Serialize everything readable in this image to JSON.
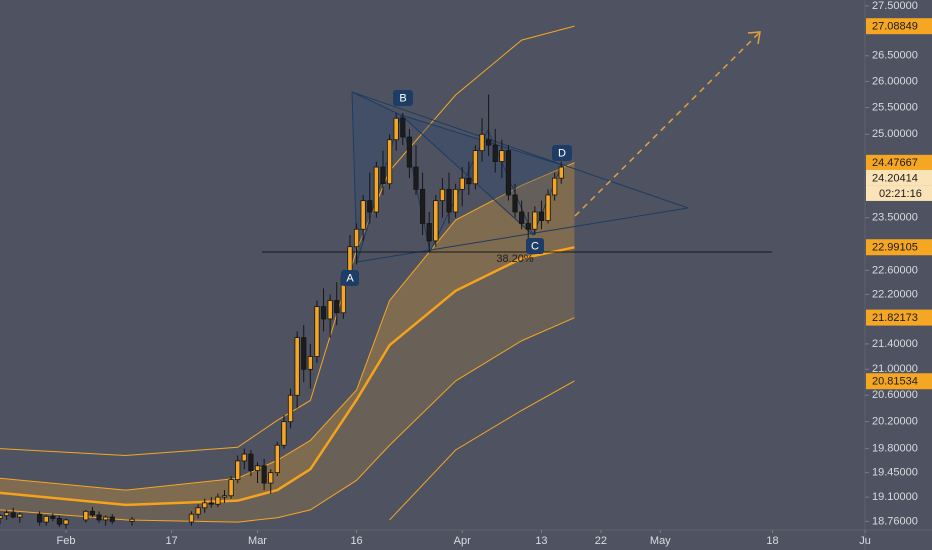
{
  "chart_data": {
    "type": "candlestick",
    "log_scale": true,
    "xlim": [
      21,
      152
    ],
    "ylim": [
      18.64,
      27.62
    ],
    "xticks": [
      {
        "value": 31,
        "label": "Feb"
      },
      {
        "value": 47,
        "label": "17"
      },
      {
        "value": 60,
        "label": "Mar"
      },
      {
        "value": 75,
        "label": "16"
      },
      {
        "value": 91,
        "label": "Apr"
      },
      {
        "value": 103,
        "label": "13"
      },
      {
        "value": 112,
        "label": "22"
      },
      {
        "value": 121,
        "label": "May"
      },
      {
        "value": 138,
        "label": "18"
      },
      {
        "value": 152,
        "label": "Ju"
      }
    ],
    "yticks": [
      {
        "value": 27.5,
        "label": "27.50000"
      },
      {
        "value": 26.5,
        "label": "26.50000"
      },
      {
        "value": 26.0,
        "label": "26.00000"
      },
      {
        "value": 25.5,
        "label": "25.50000"
      },
      {
        "value": 25.0,
        "label": "25.00000"
      },
      {
        "value": 23.5,
        "label": "23.50000"
      },
      {
        "value": 22.6,
        "label": "22.60000"
      },
      {
        "value": 22.2,
        "label": "22.20000"
      },
      {
        "value": 21.4,
        "label": "21.40000"
      },
      {
        "value": 21.0,
        "label": "21.00000"
      },
      {
        "value": 20.6,
        "label": "20.60000"
      },
      {
        "value": 20.2,
        "label": "20.20000"
      },
      {
        "value": 19.8,
        "label": "19.80000"
      },
      {
        "value": 19.45,
        "label": "19.45000"
      },
      {
        "value": 19.1,
        "label": "19.10000"
      },
      {
        "value": 18.76,
        "label": "18.76000"
      }
    ],
    "up_color": "#f5a623",
    "down_color": "#1c1c1e",
    "x": [
      21,
      22,
      23,
      24,
      27,
      28,
      29,
      30,
      31,
      34,
      35,
      36,
      37,
      38,
      41,
      50,
      51,
      52,
      53,
      54,
      55,
      56,
      57,
      58,
      59,
      60,
      61,
      62,
      63,
      64,
      65,
      66,
      67,
      68,
      69,
      70,
      71,
      72,
      73,
      74,
      75,
      76,
      77,
      78,
      79,
      80,
      81,
      82,
      83,
      84,
      85,
      86,
      87,
      88,
      89,
      90,
      91,
      92,
      93,
      94,
      95,
      96,
      97,
      98,
      99,
      100,
      101,
      102,
      103,
      104,
      105,
      106
    ],
    "open": [
      18.8,
      18.84,
      18.88,
      18.82,
      18.86,
      18.75,
      18.83,
      18.8,
      18.72,
      18.78,
      18.9,
      18.85,
      18.78,
      18.82,
      18.76,
      18.75,
      18.86,
      18.95,
      19.02,
      19.0,
      19.1,
      19.12,
      19.35,
      19.62,
      19.72,
      19.48,
      19.55,
      19.3,
      19.45,
      19.85,
      20.2,
      20.6,
      21.5,
      21.0,
      21.2,
      22.0,
      21.8,
      22.1,
      21.9,
      22.5,
      23.0,
      23.3,
      23.8,
      23.6,
      24.4,
      24.1,
      24.9,
      25.3,
      24.95,
      24.4,
      24.0,
      23.4,
      23.1,
      23.8,
      24.0,
      23.6,
      24.0,
      24.2,
      24.1,
      24.7,
      24.9,
      24.8,
      24.5,
      24.7,
      23.9,
      23.6,
      23.4,
      23.3,
      23.6,
      23.45,
      23.9,
      24.2
    ],
    "high": [
      18.86,
      18.92,
      18.95,
      18.88,
      18.9,
      18.85,
      18.87,
      18.84,
      18.8,
      18.92,
      18.96,
      18.9,
      18.84,
      18.86,
      18.82,
      18.9,
      19.0,
      19.08,
      19.1,
      19.15,
      19.2,
      19.4,
      19.7,
      19.8,
      19.78,
      19.6,
      19.65,
      19.5,
      19.9,
      20.3,
      20.7,
      21.6,
      21.7,
      21.4,
      22.1,
      22.3,
      22.2,
      22.4,
      22.6,
      23.2,
      23.4,
      23.9,
      24.3,
      24.5,
      24.7,
      25.0,
      25.4,
      25.4,
      25.1,
      24.8,
      24.3,
      23.6,
      23.9,
      24.2,
      24.3,
      24.1,
      24.4,
      24.5,
      24.8,
      25.3,
      25.75,
      25.1,
      24.9,
      24.8,
      24.1,
      23.8,
      23.6,
      23.7,
      23.8,
      24.0,
      24.3,
      24.5
    ],
    "low": [
      18.72,
      18.78,
      18.8,
      18.74,
      18.7,
      18.7,
      18.76,
      18.68,
      18.66,
      18.74,
      18.82,
      18.74,
      18.7,
      18.72,
      18.7,
      18.7,
      18.8,
      18.88,
      18.95,
      18.96,
      19.02,
      19.08,
      19.3,
      19.5,
      19.4,
      19.3,
      19.2,
      19.15,
      19.4,
      19.8,
      20.1,
      20.4,
      20.8,
      20.7,
      21.1,
      21.6,
      21.5,
      21.7,
      21.8,
      22.4,
      22.7,
      23.1,
      23.4,
      23.5,
      23.9,
      24.0,
      24.7,
      24.8,
      24.2,
      23.9,
      23.2,
      22.9,
      23.0,
      23.5,
      23.4,
      23.5,
      23.7,
      23.9,
      24.0,
      24.5,
      24.6,
      24.3,
      24.2,
      23.8,
      23.5,
      23.3,
      23.1,
      23.2,
      23.3,
      23.4,
      23.8,
      24.1
    ],
    "close": [
      18.84,
      18.88,
      18.82,
      18.86,
      18.75,
      18.83,
      18.8,
      18.72,
      18.78,
      18.9,
      18.85,
      18.78,
      18.82,
      18.76,
      18.79,
      18.86,
      18.95,
      19.02,
      19.0,
      19.1,
      19.12,
      19.35,
      19.62,
      19.72,
      19.48,
      19.55,
      19.3,
      19.45,
      19.85,
      20.2,
      20.6,
      21.5,
      21.0,
      21.2,
      22.0,
      21.8,
      22.1,
      21.9,
      22.5,
      23.0,
      23.3,
      23.8,
      23.6,
      24.4,
      24.1,
      24.9,
      25.3,
      24.95,
      24.4,
      24.0,
      23.4,
      23.1,
      23.8,
      24.0,
      23.6,
      24.0,
      24.2,
      24.1,
      24.7,
      25.0,
      24.8,
      24.5,
      24.7,
      23.9,
      23.6,
      23.4,
      23.3,
      23.6,
      23.45,
      23.9,
      24.2,
      24.4
    ],
    "line_x": [
      21,
      40,
      57,
      63,
      68,
      75,
      80,
      90,
      100,
      108
    ],
    "lines": [
      {
        "color": "#f5a623",
        "width": 1,
        "values": [
          19.8,
          19.7,
          19.82,
          20.22,
          20.52,
          22.94,
          24.33,
          25.74,
          26.81,
          27.09
        ]
      },
      {
        "color": "#f5a623",
        "width": 1,
        "values": [
          19.37,
          19.2,
          19.37,
          19.63,
          19.92,
          20.68,
          22.1,
          23.46,
          24.07,
          24.48
        ]
      },
      {
        "color": "#f7a21b",
        "width": 2.5,
        "values": [
          19.16,
          18.99,
          19.05,
          19.2,
          19.5,
          20.53,
          21.38,
          22.26,
          22.8,
          22.99
        ]
      },
      {
        "color": "#f5a623",
        "width": 1,
        "values": [
          18.92,
          18.78,
          18.75,
          18.81,
          18.92,
          19.34,
          19.85,
          20.82,
          21.45,
          21.82
        ]
      },
      {
        "color": "#f5a623",
        "width": 1,
        "values": [
          null,
          null,
          null,
          null,
          null,
          null,
          18.78,
          19.78,
          20.37,
          20.82
        ]
      }
    ],
    "price_tags": [
      27.08849,
      24.47667,
      24.20414,
      22.99105,
      21.82173,
      20.81534
    ],
    "countdown": "02:21:16",
    "pattern_labels": [
      "A",
      "B",
      "C",
      "D"
    ],
    "fib_ratio": {
      "value": 38.2,
      "label": "38.20%"
    }
  }
}
